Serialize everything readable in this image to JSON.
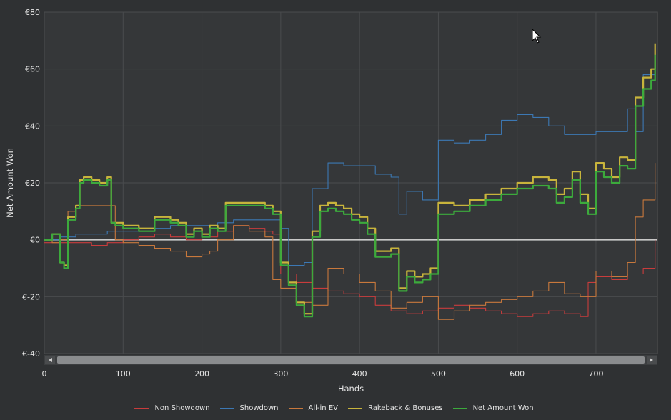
{
  "chart_data": {
    "type": "line",
    "xlabel": "Hands",
    "ylabel": "Net Amount Won",
    "xlim": [
      0,
      778
    ],
    "ylim": [
      -40,
      80
    ],
    "x_ticks": [
      "0",
      "100",
      "200",
      "300",
      "400",
      "500",
      "600",
      "700"
    ],
    "y_ticks": [
      "€80",
      "€60",
      "€40",
      "€20",
      "€0",
      "€-20",
      "€-40"
    ],
    "grid": true,
    "legend_position": "bottom",
    "series": [
      {
        "name": "Non Showdown",
        "color": "#c83c3c",
        "x": [
          0,
          20,
          40,
          60,
          80,
          100,
          120,
          140,
          160,
          180,
          200,
          220,
          240,
          260,
          280,
          290,
          300,
          320,
          340,
          360,
          380,
          400,
          420,
          440,
          460,
          480,
          500,
          520,
          540,
          560,
          580,
          600,
          620,
          640,
          660,
          680,
          690,
          700,
          720,
          740,
          760,
          775
        ],
        "y": [
          -1,
          -1,
          -1,
          -2,
          -1,
          0,
          1,
          2,
          1,
          0,
          1,
          3,
          5,
          4,
          3,
          2,
          -12,
          -15,
          -17,
          -18,
          -19,
          -20,
          -23,
          -25,
          -26,
          -25,
          -24,
          -23,
          -24,
          -25,
          -26,
          -27,
          -26,
          -25,
          -26,
          -27,
          -15,
          -13,
          -14,
          -12,
          -10,
          0
        ]
      },
      {
        "name": "Showdown",
        "color": "#3c78b4",
        "x": [
          0,
          20,
          40,
          60,
          80,
          100,
          120,
          140,
          160,
          180,
          200,
          220,
          240,
          260,
          280,
          300,
          310,
          330,
          340,
          360,
          380,
          400,
          420,
          440,
          450,
          460,
          480,
          490,
          500,
          520,
          540,
          560,
          580,
          600,
          620,
          640,
          660,
          680,
          700,
          720,
          740,
          750,
          760,
          775
        ],
        "y": [
          0,
          1,
          2,
          2,
          3,
          3,
          4,
          4,
          5,
          5,
          5,
          6,
          7,
          7,
          7,
          4,
          -9,
          -8,
          18,
          27,
          26,
          26,
          23,
          22,
          9,
          17,
          14,
          14,
          35,
          34,
          35,
          37,
          42,
          44,
          43,
          40,
          37,
          37,
          38,
          38,
          46,
          38,
          58,
          58
        ]
      },
      {
        "name": "All-in EV",
        "color": "#c8783c",
        "x": [
          0,
          10,
          20,
          30,
          40,
          60,
          80,
          90,
          100,
          120,
          140,
          160,
          180,
          200,
          210,
          220,
          240,
          260,
          280,
          290,
          300,
          320,
          340,
          360,
          380,
          400,
          420,
          440,
          460,
          480,
          500,
          520,
          540,
          560,
          580,
          600,
          620,
          640,
          660,
          680,
          700,
          720,
          740,
          750,
          760,
          775
        ],
        "y": [
          0,
          -1,
          0,
          10,
          12,
          12,
          12,
          0,
          -1,
          -2,
          -3,
          -4,
          -6,
          -5,
          -4,
          0,
          5,
          3,
          1,
          -14,
          -17,
          -22,
          -23,
          -10,
          -12,
          -15,
          -18,
          -24,
          -22,
          -20,
          -28,
          -25,
          -23,
          -22,
          -21,
          -20,
          -18,
          -15,
          -19,
          -20,
          -11,
          -13,
          -8,
          8,
          14,
          27
        ]
      },
      {
        "name": "Rakeback & Bonuses",
        "color": "#c8b43c",
        "x": [
          0,
          10,
          15,
          20,
          25,
          30,
          40,
          45,
          50,
          60,
          70,
          80,
          85,
          90,
          100,
          120,
          140,
          160,
          170,
          180,
          190,
          200,
          210,
          220,
          230,
          240,
          260,
          280,
          290,
          300,
          310,
          320,
          330,
          340,
          350,
          360,
          370,
          380,
          390,
          400,
          410,
          420,
          440,
          450,
          460,
          470,
          480,
          490,
          500,
          520,
          540,
          560,
          580,
          600,
          620,
          640,
          650,
          660,
          670,
          680,
          690,
          700,
          710,
          720,
          730,
          740,
          750,
          760,
          770,
          775
        ],
        "y": [
          0,
          2,
          2,
          -8,
          -9,
          8,
          12,
          21,
          22,
          21,
          20,
          22,
          6,
          6,
          5,
          4,
          8,
          7,
          6,
          2,
          4,
          2,
          5,
          4,
          13,
          13,
          13,
          12,
          10,
          -8,
          -15,
          -22,
          -26,
          3,
          12,
          13,
          12,
          11,
          9,
          8,
          4,
          -4,
          -3,
          -17,
          -11,
          -13,
          -12,
          -10,
          13,
          12,
          14,
          16,
          18,
          20,
          22,
          21,
          16,
          18,
          24,
          16,
          11,
          27,
          25,
          22,
          29,
          28,
          50,
          57,
          60,
          69
        ]
      },
      {
        "name": "Net Amount Won",
        "color": "#3caa3c",
        "x": [
          0,
          10,
          15,
          20,
          25,
          30,
          40,
          45,
          50,
          60,
          70,
          80,
          85,
          90,
          100,
          120,
          140,
          160,
          170,
          180,
          190,
          200,
          210,
          220,
          230,
          240,
          260,
          280,
          290,
          300,
          310,
          320,
          330,
          340,
          350,
          360,
          370,
          380,
          390,
          400,
          410,
          420,
          440,
          450,
          460,
          470,
          480,
          490,
          500,
          520,
          540,
          560,
          580,
          600,
          620,
          640,
          650,
          660,
          670,
          680,
          690,
          700,
          710,
          720,
          730,
          740,
          750,
          760,
          770,
          775
        ],
        "y": [
          0,
          2,
          2,
          -8,
          -10,
          7,
          11,
          20,
          21,
          20,
          19,
          21,
          6,
          5,
          4,
          3,
          7,
          6,
          5,
          1,
          3,
          1,
          4,
          3,
          12,
          12,
          12,
          11,
          9,
          -9,
          -16,
          -23,
          -27,
          1,
          10,
          11,
          10,
          9,
          7,
          6,
          2,
          -6,
          -5,
          -18,
          -13,
          -15,
          -14,
          -12,
          9,
          10,
          12,
          14,
          16,
          18,
          19,
          18,
          13,
          15,
          21,
          13,
          9,
          24,
          22,
          20,
          26,
          25,
          47,
          53,
          56,
          65
        ]
      }
    ]
  }
}
